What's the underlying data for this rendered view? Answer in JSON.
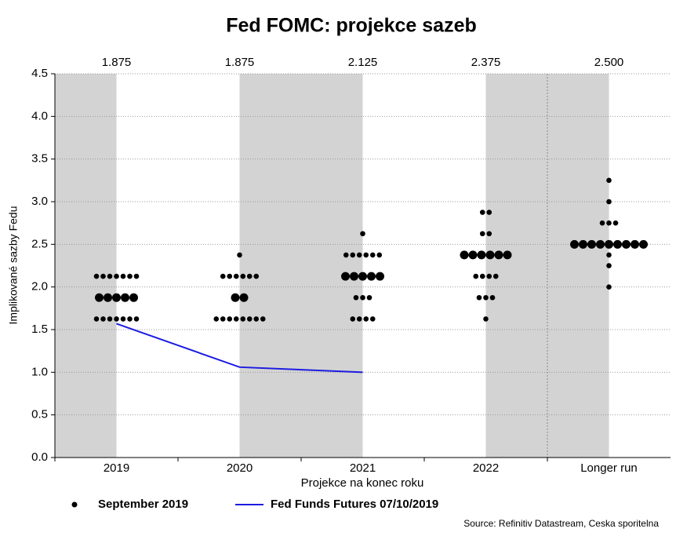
{
  "chart_data": {
    "type": "scatter",
    "title": "Fed FOMC: projekce sazeb",
    "y_label": "Implikované sazby Fedu",
    "x_label": "Projekce na konec roku",
    "source": "Source: Refinitiv Datastream, Ceska sporitelna",
    "categories": [
      "2019",
      "2020",
      "2021",
      "2022",
      "Longer run"
    ],
    "medians": [
      1.875,
      1.875,
      2.125,
      2.375,
      {
        "value": 2.5,
        "label": "2.500"
      }
    ],
    "ylim": [
      0,
      4.5
    ],
    "yticks": [
      {
        "value": 0,
        "label": "0.0"
      },
      0.5,
      {
        "value": 1,
        "label": "1.0"
      },
      1.5,
      {
        "value": 2,
        "label": "2.0"
      },
      2.5,
      {
        "value": 3,
        "label": "3.0"
      },
      3.5,
      {
        "value": 4,
        "label": "4.0"
      },
      4.5
    ],
    "grid": true,
    "series": [
      {
        "name": "September 2019",
        "type": "dots",
        "color": "#000000",
        "groups": [
          [
            {
              "y": 2.125,
              "count": 7
            },
            {
              "y": 1.875,
              "count": 5
            },
            {
              "y": 1.625,
              "count": 7
            }
          ],
          [
            {
              "y": 2.375,
              "count": 1
            },
            {
              "y": 2.125,
              "count": 6
            },
            {
              "y": 1.875,
              "count": 2
            },
            {
              "y": 1.625,
              "count": 8
            }
          ],
          [
            {
              "y": 2.625,
              "count": 1
            },
            {
              "y": 2.375,
              "count": 6
            },
            {
              "y": 2.125,
              "count": 5
            },
            {
              "y": 1.875,
              "count": 3
            },
            {
              "y": 1.625,
              "count": 4
            }
          ],
          [
            {
              "y": 2.875,
              "count": 2
            },
            {
              "y": 2.625,
              "count": 2
            },
            {
              "y": 2.375,
              "count": 6
            },
            {
              "y": 2.125,
              "count": 4
            },
            {
              "y": 1.875,
              "count": 3
            },
            {
              "y": 1.625,
              "count": 1
            }
          ],
          [
            {
              "y": 3.25,
              "count": 1
            },
            {
              "y": 3,
              "count": 1
            },
            {
              "y": 2.75,
              "count": 3
            },
            {
              "y": 2.5,
              "count": 9
            },
            {
              "y": 2.375,
              "count": 1
            },
            {
              "y": 2.25,
              "count": 1
            },
            {
              "y": 2,
              "count": 1
            }
          ]
        ]
      },
      {
        "name": "Fed Funds Futures 07/10/2019",
        "type": "line",
        "color": "#1c1ce0",
        "values": [
          1.57,
          1.06,
          1.0,
          null,
          null
        ]
      }
    ]
  }
}
